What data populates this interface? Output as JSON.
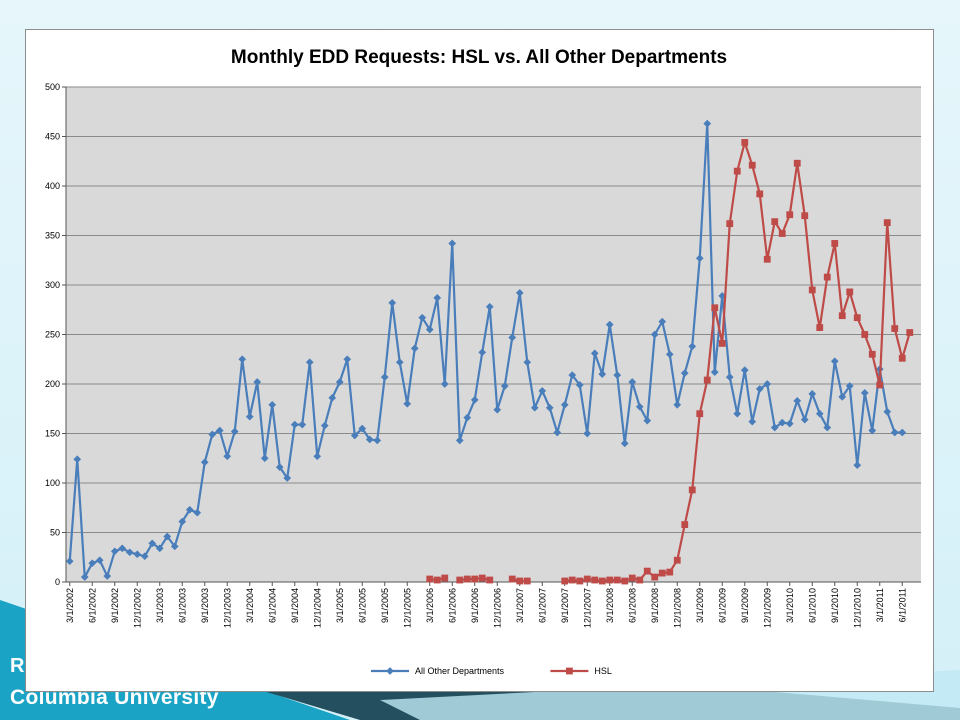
{
  "slide": {
    "footer_line1": "R",
    "footer_line2": "Columbia University"
  },
  "colors": {
    "series_other": "#4a7ebb",
    "series_hsl": "#be4b48",
    "plot_bg": "#d9d9d9"
  },
  "chart_data": {
    "type": "line",
    "title": "Monthly EDD Requests: HSL vs. All Other Departments",
    "xlabel": "",
    "ylabel": "",
    "ylim": [
      0,
      500
    ],
    "yticks": [
      0,
      50,
      100,
      150,
      200,
      250,
      300,
      350,
      400,
      450,
      500
    ],
    "grid": true,
    "legend_position": "bottom",
    "x_tick_labels": [
      "3/1/2002",
      "6/1/2002",
      "9/1/2002",
      "12/1/2002",
      "3/1/2003",
      "6/1/2003",
      "9/1/2003",
      "12/1/2003",
      "3/1/2004",
      "6/1/2004",
      "9/1/2004",
      "12/1/2004",
      "3/1/2005",
      "6/1/2005",
      "9/1/2005",
      "12/1/2005",
      "3/1/2006",
      "6/1/2006",
      "9/1/2006",
      "12/1/2006",
      "3/1/2007",
      "6/1/2007",
      "9/1/2007",
      "12/1/2007",
      "3/1/2008",
      "6/1/2008",
      "9/1/2008",
      "12/1/2008",
      "3/1/2009",
      "6/1/2009",
      "9/1/2009",
      "12/1/2009",
      "3/1/2010",
      "6/1/2010",
      "9/1/2010",
      "12/1/2010",
      "3/1/2011",
      "6/1/2011"
    ],
    "start_month": "2002-03",
    "series": [
      {
        "name": "All Other Departments",
        "color": "#4a7ebb",
        "marker": "diamond",
        "values": [
          21,
          124,
          5,
          19,
          22,
          6,
          31,
          34,
          30,
          28,
          26,
          39,
          34,
          46,
          36,
          61,
          73,
          70,
          121,
          149,
          153,
          127,
          152,
          225,
          167,
          202,
          125,
          179,
          116,
          105,
          159,
          159,
          222,
          127,
          158,
          186,
          202,
          225,
          148,
          155,
          144,
          143,
          207,
          282,
          222,
          180,
          236,
          267,
          255,
          287,
          200,
          342,
          143,
          166,
          184,
          232,
          278,
          174,
          198,
          247,
          292,
          222,
          176,
          193,
          176,
          151,
          179,
          209,
          199,
          150,
          231,
          210,
          260,
          209,
          140,
          202,
          177,
          163,
          250,
          263,
          230,
          179,
          211,
          238,
          327,
          463,
          212,
          289,
          207,
          170,
          214,
          162,
          195,
          200,
          156,
          161,
          160,
          183,
          164,
          190,
          170,
          156,
          223,
          187,
          198,
          118,
          191,
          153,
          215,
          172,
          151,
          151
        ],
        "start_index": 0
      },
      {
        "name": "HSL",
        "color": "#be4b48",
        "marker": "square",
        "segments": [
          {
            "start_index": 48,
            "values": [
              3,
              2,
              4
            ]
          },
          {
            "start_index": 52,
            "values": [
              2,
              3,
              3,
              4,
              2
            ]
          },
          {
            "start_index": 59,
            "values": [
              3,
              1,
              1
            ]
          },
          {
            "start_index": 66,
            "values": [
              1,
              2,
              1,
              3,
              2,
              1,
              2,
              2,
              1,
              4,
              2,
              11,
              5,
              9,
              10,
              22,
              58,
              93,
              170,
              204,
              277,
              241,
              362,
              415,
              444,
              421,
              392,
              326,
              364,
              352,
              371,
              423,
              370,
              295,
              257,
              308,
              342,
              269,
              293,
              267,
              250,
              230,
              199,
              363,
              256,
              226,
              252
            ]
          }
        ]
      }
    ]
  }
}
